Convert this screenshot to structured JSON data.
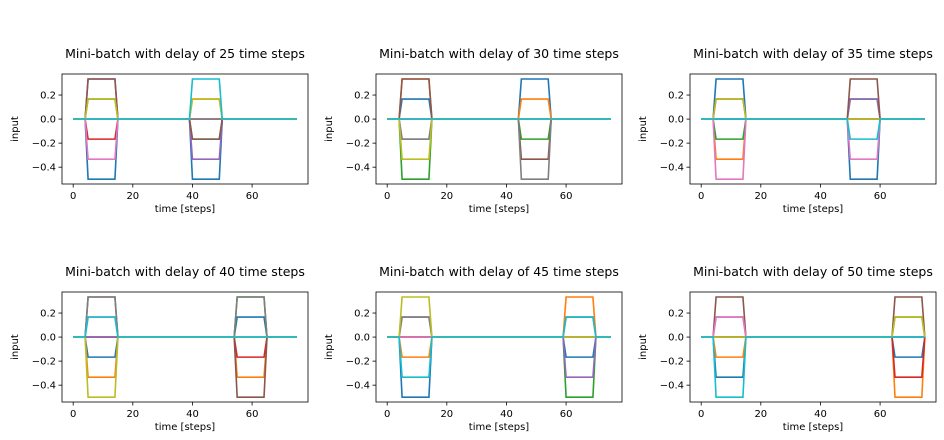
{
  "chart_data": [
    {
      "type": "line",
      "title": "Mini-batch with delay of 25 time steps",
      "xlabel": "time [steps]",
      "ylabel": "input",
      "xlim": [
        -3.75,
        78.75
      ],
      "ylim": [
        -0.54,
        0.375
      ],
      "xticks": [
        0,
        20,
        40,
        60
      ],
      "yticks": [
        -0.4,
        -0.2,
        0.0,
        0.2
      ],
      "pulse_width_steps": 10,
      "delay_steps": 25,
      "length_steps": 75,
      "series": [
        {
          "color": "#1f77b4",
          "first_value": -0.5,
          "second_value": -0.5
        },
        {
          "color": "#ff7f0e",
          "first_value": 0.0,
          "second_value": 0.1667
        },
        {
          "color": "#2ca02c",
          "first_value": 0.1667,
          "second_value": -0.1667
        },
        {
          "color": "#d62728",
          "first_value": -0.1667,
          "second_value": 0.0
        },
        {
          "color": "#9467bd",
          "first_value": 0.3333,
          "second_value": -0.3333
        },
        {
          "color": "#8c564b",
          "first_value": 0.3333,
          "second_value": -0.1667
        },
        {
          "color": "#e377c2",
          "first_value": -0.3333,
          "second_value": 0.0
        },
        {
          "color": "#7f7f7f",
          "first_value": 0.0,
          "second_value": 0.0
        },
        {
          "color": "#bcbd22",
          "first_value": 0.1667,
          "second_value": 0.1667
        },
        {
          "color": "#17becf",
          "first_value": 0.0,
          "second_value": 0.3333
        }
      ]
    },
    {
      "type": "line",
      "title": "Mini-batch with delay of 30 time steps",
      "xlabel": "time [steps]",
      "ylabel": "input",
      "xlim": [
        -3.75,
        78.75
      ],
      "ylim": [
        -0.54,
        0.375
      ],
      "xticks": [
        0,
        20,
        40,
        60
      ],
      "yticks": [
        -0.4,
        -0.2,
        0.0,
        0.2
      ],
      "pulse_width_steps": 10,
      "delay_steps": 30,
      "length_steps": 75,
      "series": [
        {
          "color": "#1f77b4",
          "first_value": 0.1667,
          "second_value": 0.3333
        },
        {
          "color": "#ff7f0e",
          "first_value": 0.3333,
          "second_value": 0.1667
        },
        {
          "color": "#2ca02c",
          "first_value": -0.5,
          "second_value": -0.1667
        },
        {
          "color": "#d62728",
          "first_value": 0.0,
          "second_value": 0.0
        },
        {
          "color": "#9467bd",
          "first_value": -0.1667,
          "second_value": 0.0
        },
        {
          "color": "#8c564b",
          "first_value": 0.3333,
          "second_value": -0.3333
        },
        {
          "color": "#e377c2",
          "first_value": 0.0,
          "second_value": 0.0
        },
        {
          "color": "#7f7f7f",
          "first_value": -0.1667,
          "second_value": -0.5
        },
        {
          "color": "#bcbd22",
          "first_value": -0.3333,
          "second_value": 0.0
        },
        {
          "color": "#17becf",
          "first_value": 0.0,
          "second_value": 0.0
        }
      ]
    },
    {
      "type": "line",
      "title": "Mini-batch with delay of 35 time steps",
      "xlabel": "time [steps]",
      "ylabel": "input",
      "xlim": [
        -3.75,
        78.75
      ],
      "ylim": [
        -0.54,
        0.375
      ],
      "xticks": [
        0,
        20,
        40,
        60
      ],
      "yticks": [
        -0.4,
        -0.2,
        0.0,
        0.2
      ],
      "pulse_width_steps": 10,
      "delay_steps": 35,
      "length_steps": 75,
      "series": [
        {
          "color": "#1f77b4",
          "first_value": 0.3333,
          "second_value": -0.5
        },
        {
          "color": "#ff7f0e",
          "first_value": -0.3333,
          "second_value": 0.0
        },
        {
          "color": "#2ca02c",
          "first_value": -0.1667,
          "second_value": 0.1667
        },
        {
          "color": "#d62728",
          "first_value": 0.0,
          "second_value": 0.0
        },
        {
          "color": "#9467bd",
          "first_value": 0.0,
          "second_value": 0.1667
        },
        {
          "color": "#8c564b",
          "first_value": 0.1667,
          "second_value": 0.3333
        },
        {
          "color": "#e377c2",
          "first_value": -0.5,
          "second_value": -0.3333
        },
        {
          "color": "#7f7f7f",
          "first_value": 0.0,
          "second_value": 0.0
        },
        {
          "color": "#bcbd22",
          "first_value": 0.1667,
          "second_value": 0.0
        },
        {
          "color": "#17becf",
          "first_value": 0.0,
          "second_value": -0.1667
        }
      ]
    },
    {
      "type": "line",
      "title": "Mini-batch with delay of 40 time steps",
      "xlabel": "time [steps]",
      "ylabel": "input",
      "xlim": [
        -3.75,
        78.75
      ],
      "ylim": [
        -0.54,
        0.375
      ],
      "xticks": [
        0,
        20,
        40,
        60
      ],
      "yticks": [
        -0.4,
        -0.2,
        0.0,
        0.2
      ],
      "pulse_width_steps": 10,
      "delay_steps": 40,
      "length_steps": 75,
      "series": [
        {
          "color": "#1f77b4",
          "first_value": -0.1667,
          "second_value": 0.1667
        },
        {
          "color": "#ff7f0e",
          "first_value": -0.3333,
          "second_value": -0.3333
        },
        {
          "color": "#2ca02c",
          "first_value": 0.0,
          "second_value": 0.3333
        },
        {
          "color": "#d62728",
          "first_value": 0.0,
          "second_value": -0.1667
        },
        {
          "color": "#9467bd",
          "first_value": 0.0,
          "second_value": 0.0
        },
        {
          "color": "#8c564b",
          "first_value": 0.3333,
          "second_value": -0.5
        },
        {
          "color": "#e377c2",
          "first_value": 0.1667,
          "second_value": 0.0
        },
        {
          "color": "#7f7f7f",
          "first_value": 0.3333,
          "second_value": 0.3333
        },
        {
          "color": "#bcbd22",
          "first_value": -0.5,
          "second_value": 0.0
        },
        {
          "color": "#17becf",
          "first_value": 0.1667,
          "second_value": 0.0
        }
      ]
    },
    {
      "type": "line",
      "title": "Mini-batch with delay of 45 time steps",
      "xlabel": "time [steps]",
      "ylabel": "input",
      "xlim": [
        -3.75,
        78.75
      ],
      "ylim": [
        -0.54,
        0.375
      ],
      "xticks": [
        0,
        20,
        40,
        60
      ],
      "yticks": [
        -0.4,
        -0.2,
        0.0,
        0.2
      ],
      "pulse_width_steps": 10,
      "delay_steps": 45,
      "length_steps": 75,
      "series": [
        {
          "color": "#1f77b4",
          "first_value": -0.5,
          "second_value": -0.1667
        },
        {
          "color": "#ff7f0e",
          "first_value": -0.1667,
          "second_value": 0.3333
        },
        {
          "color": "#2ca02c",
          "first_value": 0.0,
          "second_value": -0.5
        },
        {
          "color": "#d62728",
          "first_value": 0.0,
          "second_value": 0.0
        },
        {
          "color": "#9467bd",
          "first_value": 0.1667,
          "second_value": -0.3333
        },
        {
          "color": "#8c564b",
          "first_value": 0.0,
          "second_value": 0.1667
        },
        {
          "color": "#e377c2",
          "first_value": 0.0,
          "second_value": 0.0
        },
        {
          "color": "#7f7f7f",
          "first_value": 0.1667,
          "second_value": 0.0
        },
        {
          "color": "#bcbd22",
          "first_value": 0.3333,
          "second_value": 0.0
        },
        {
          "color": "#17becf",
          "first_value": -0.3333,
          "second_value": 0.1667
        }
      ]
    },
    {
      "type": "line",
      "title": "Mini-batch with delay of 50 time steps",
      "xlabel": "time [steps]",
      "ylabel": "input",
      "xlim": [
        -3.75,
        78.75
      ],
      "ylim": [
        -0.54,
        0.375
      ],
      "xticks": [
        0,
        20,
        40,
        60
      ],
      "yticks": [
        -0.4,
        -0.2,
        0.0,
        0.2
      ],
      "pulse_width_steps": 10,
      "delay_steps": 50,
      "length_steps": 75,
      "series": [
        {
          "color": "#1f77b4",
          "first_value": -0.3333,
          "second_value": -0.1667
        },
        {
          "color": "#ff7f0e",
          "first_value": -0.1667,
          "second_value": -0.5
        },
        {
          "color": "#2ca02c",
          "first_value": 0.0,
          "second_value": 0.1667
        },
        {
          "color": "#d62728",
          "first_value": 0.0,
          "second_value": -0.3333
        },
        {
          "color": "#9467bd",
          "first_value": 0.1667,
          "second_value": 0.0
        },
        {
          "color": "#8c564b",
          "first_value": 0.3333,
          "second_value": 0.3333
        },
        {
          "color": "#e377c2",
          "first_value": 0.1667,
          "second_value": 0.0
        },
        {
          "color": "#7f7f7f",
          "first_value": 0.0,
          "second_value": 0.0
        },
        {
          "color": "#bcbd22",
          "first_value": 0.0,
          "second_value": 0.1667
        },
        {
          "color": "#17becf",
          "first_value": -0.5,
          "second_value": 0.0
        }
      ]
    }
  ]
}
